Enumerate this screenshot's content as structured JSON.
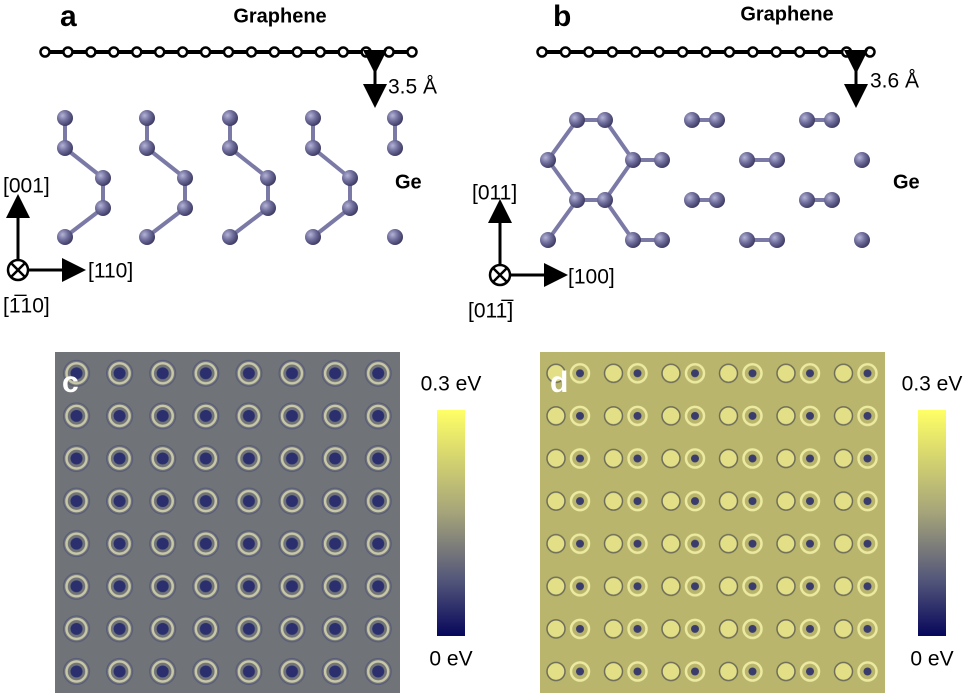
{
  "panels": [
    {
      "label": "a",
      "layer": "Graphene",
      "substrate": "Ge",
      "spacing": "3.5 Å",
      "axes": {
        "up": "[001]",
        "right": "[110]",
        "into": "[1̅10]"
      }
    },
    {
      "label": "b",
      "layer": "Graphene",
      "substrate": "Ge",
      "spacing": "3.6 Å",
      "axes": {
        "up": "[011]",
        "right": "[100]",
        "into": "[011̅]"
      }
    },
    {
      "label": "c",
      "colorbar": {
        "max": "0.3 eV",
        "min": "0 eV"
      }
    },
    {
      "label": "d",
      "colorbar": {
        "max": "0.3 eV",
        "min": "0 eV"
      }
    }
  ]
}
